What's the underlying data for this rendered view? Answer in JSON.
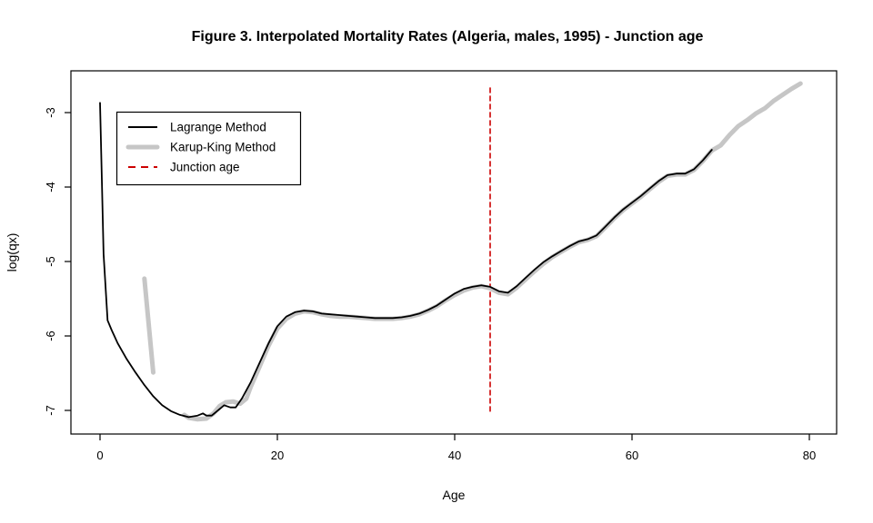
{
  "chart_data": {
    "type": "line",
    "title": "Figure 3. Interpolated Mortality Rates (Algeria, males, 1995) - Junction age",
    "xlabel": "Age",
    "ylabel": "log(qx)",
    "xlim": [
      -3.3,
      83.1
    ],
    "ylim": [
      -7.32,
      -2.44
    ],
    "xticks": [
      0,
      20,
      40,
      60,
      80
    ],
    "yticks": [
      -3,
      -4,
      -5,
      -6,
      -7
    ],
    "grid": false,
    "legend_position": "top-left",
    "junction_age": 44,
    "colors": {
      "lagrange": "#000000",
      "karup_king": "#c6c6c6",
      "junction": "#cc0000",
      "background": "#ffffff"
    },
    "series": [
      {
        "name": "Lagrange Method",
        "color": "#000000",
        "style": "solid",
        "width": 1.8,
        "segments": [
          [
            [
              0,
              -2.87
            ],
            [
              0.2,
              -3.9
            ],
            [
              0.4,
              -4.9
            ],
            [
              0.85,
              -5.79
            ],
            [
              1.3,
              -5.92
            ],
            [
              2,
              -6.1
            ],
            [
              3,
              -6.31
            ],
            [
              4,
              -6.49
            ],
            [
              5,
              -6.66
            ],
            [
              6,
              -6.81
            ],
            [
              7,
              -6.93
            ],
            [
              8,
              -7.01
            ],
            [
              9,
              -7.06
            ],
            [
              10,
              -7.09
            ],
            [
              11,
              -7.07
            ],
            [
              11.6,
              -7.04
            ],
            [
              12,
              -7.07
            ],
            [
              12.6,
              -7.07
            ],
            [
              13.3,
              -7.0
            ],
            [
              14,
              -6.93
            ],
            [
              14.7,
              -6.96
            ],
            [
              15.3,
              -6.96
            ],
            [
              16,
              -6.84
            ],
            [
              17,
              -6.62
            ],
            [
              18,
              -6.36
            ],
            [
              19,
              -6.1
            ],
            [
              20,
              -5.87
            ],
            [
              21,
              -5.74
            ],
            [
              22,
              -5.68
            ],
            [
              23,
              -5.66
            ],
            [
              24,
              -5.67
            ],
            [
              25,
              -5.7
            ],
            [
              26,
              -5.71
            ],
            [
              27,
              -5.72
            ],
            [
              28,
              -5.73
            ],
            [
              29,
              -5.74
            ],
            [
              30,
              -5.75
            ],
            [
              31,
              -5.76
            ],
            [
              32,
              -5.76
            ],
            [
              33,
              -5.76
            ],
            [
              34,
              -5.75
            ],
            [
              35,
              -5.73
            ],
            [
              36,
              -5.7
            ],
            [
              37,
              -5.65
            ],
            [
              38,
              -5.59
            ],
            [
              39,
              -5.51
            ],
            [
              40,
              -5.43
            ],
            [
              41,
              -5.37
            ],
            [
              42,
              -5.34
            ],
            [
              43,
              -5.32
            ],
            [
              44,
              -5.34
            ],
            [
              45,
              -5.4
            ],
            [
              46,
              -5.42
            ],
            [
              47,
              -5.33
            ],
            [
              48,
              -5.22
            ],
            [
              49,
              -5.11
            ],
            [
              50,
              -5.01
            ],
            [
              51,
              -4.93
            ],
            [
              52,
              -4.86
            ],
            [
              53,
              -4.79
            ],
            [
              54,
              -4.73
            ],
            [
              55,
              -4.7
            ],
            [
              56,
              -4.65
            ],
            [
              57,
              -4.53
            ],
            [
              58,
              -4.41
            ],
            [
              59,
              -4.3
            ],
            [
              60,
              -4.21
            ],
            [
              61,
              -4.12
            ],
            [
              62,
              -4.02
            ],
            [
              63,
              -3.92
            ],
            [
              64,
              -3.84
            ],
            [
              65,
              -3.82
            ],
            [
              66,
              -3.82
            ],
            [
              67,
              -3.76
            ],
            [
              68,
              -3.64
            ],
            [
              69,
              -3.5
            ]
          ]
        ]
      },
      {
        "name": "Karup-King Method",
        "color": "#c6c6c6",
        "style": "solid",
        "width": 5,
        "segments": [
          [
            [
              5,
              -5.23
            ],
            [
              6,
              -6.49
            ]
          ],
          [
            [
              9.5,
              -7.06
            ],
            [
              10,
              -7.1
            ],
            [
              11,
              -7.12
            ],
            [
              12,
              -7.11
            ],
            [
              12.8,
              -7.04
            ],
            [
              13.5,
              -6.94
            ],
            [
              14.2,
              -6.89
            ],
            [
              15,
              -6.88
            ],
            [
              15.8,
              -6.91
            ],
            [
              16.5,
              -6.84
            ],
            [
              17,
              -6.68
            ],
            [
              18,
              -6.41
            ],
            [
              19,
              -6.13
            ],
            [
              20,
              -5.9
            ],
            [
              21,
              -5.77
            ],
            [
              22,
              -5.7
            ],
            [
              23,
              -5.67
            ],
            [
              24,
              -5.68
            ],
            [
              25,
              -5.71
            ],
            [
              26,
              -5.73
            ],
            [
              27,
              -5.74
            ],
            [
              28,
              -5.74
            ],
            [
              29,
              -5.75
            ],
            [
              30,
              -5.76
            ],
            [
              31,
              -5.77
            ],
            [
              32,
              -5.77
            ],
            [
              33,
              -5.77
            ],
            [
              34,
              -5.76
            ],
            [
              35,
              -5.74
            ],
            [
              36,
              -5.71
            ],
            [
              37,
              -5.66
            ],
            [
              38,
              -5.6
            ],
            [
              39,
              -5.52
            ],
            [
              40,
              -5.45
            ],
            [
              41,
              -5.39
            ],
            [
              42,
              -5.35
            ],
            [
              43,
              -5.33
            ],
            [
              44,
              -5.36
            ],
            [
              45,
              -5.42
            ],
            [
              46,
              -5.44
            ],
            [
              47,
              -5.35
            ],
            [
              48,
              -5.24
            ],
            [
              49,
              -5.13
            ],
            [
              50,
              -5.03
            ],
            [
              51,
              -4.94
            ],
            [
              52,
              -4.87
            ],
            [
              53,
              -4.8
            ],
            [
              54,
              -4.74
            ],
            [
              55,
              -4.71
            ],
            [
              56,
              -4.66
            ],
            [
              57,
              -4.54
            ],
            [
              58,
              -4.42
            ],
            [
              59,
              -4.31
            ],
            [
              60,
              -4.22
            ],
            [
              61,
              -4.13
            ],
            [
              62,
              -4.03
            ],
            [
              63,
              -3.93
            ],
            [
              64,
              -3.85
            ],
            [
              65,
              -3.83
            ],
            [
              66,
              -3.83
            ],
            [
              67,
              -3.77
            ],
            [
              68,
              -3.65
            ],
            [
              69,
              -3.51
            ],
            [
              70,
              -3.44
            ],
            [
              71,
              -3.3
            ],
            [
              72,
              -3.18
            ],
            [
              73,
              -3.1
            ],
            [
              74,
              -3.01
            ],
            [
              75,
              -2.94
            ],
            [
              76,
              -2.84
            ],
            [
              77,
              -2.76
            ],
            [
              78,
              -2.68
            ],
            [
              79,
              -2.61
            ]
          ]
        ]
      },
      {
        "name": "Junction age",
        "color": "#cc0000",
        "style": "dashed",
        "width": 1.6,
        "segments": [
          [
            [
              44,
              -2.67
            ],
            [
              44,
              -7.01
            ]
          ]
        ]
      }
    ],
    "legend": [
      {
        "label": "Lagrange Method",
        "color": "#000000",
        "style": "solid",
        "width": 2
      },
      {
        "label": "Karup-King Method",
        "color": "#c6c6c6",
        "style": "solid",
        "width": 5
      },
      {
        "label": "Junction age",
        "color": "#cc0000",
        "style": "dashed",
        "width": 2
      }
    ]
  }
}
